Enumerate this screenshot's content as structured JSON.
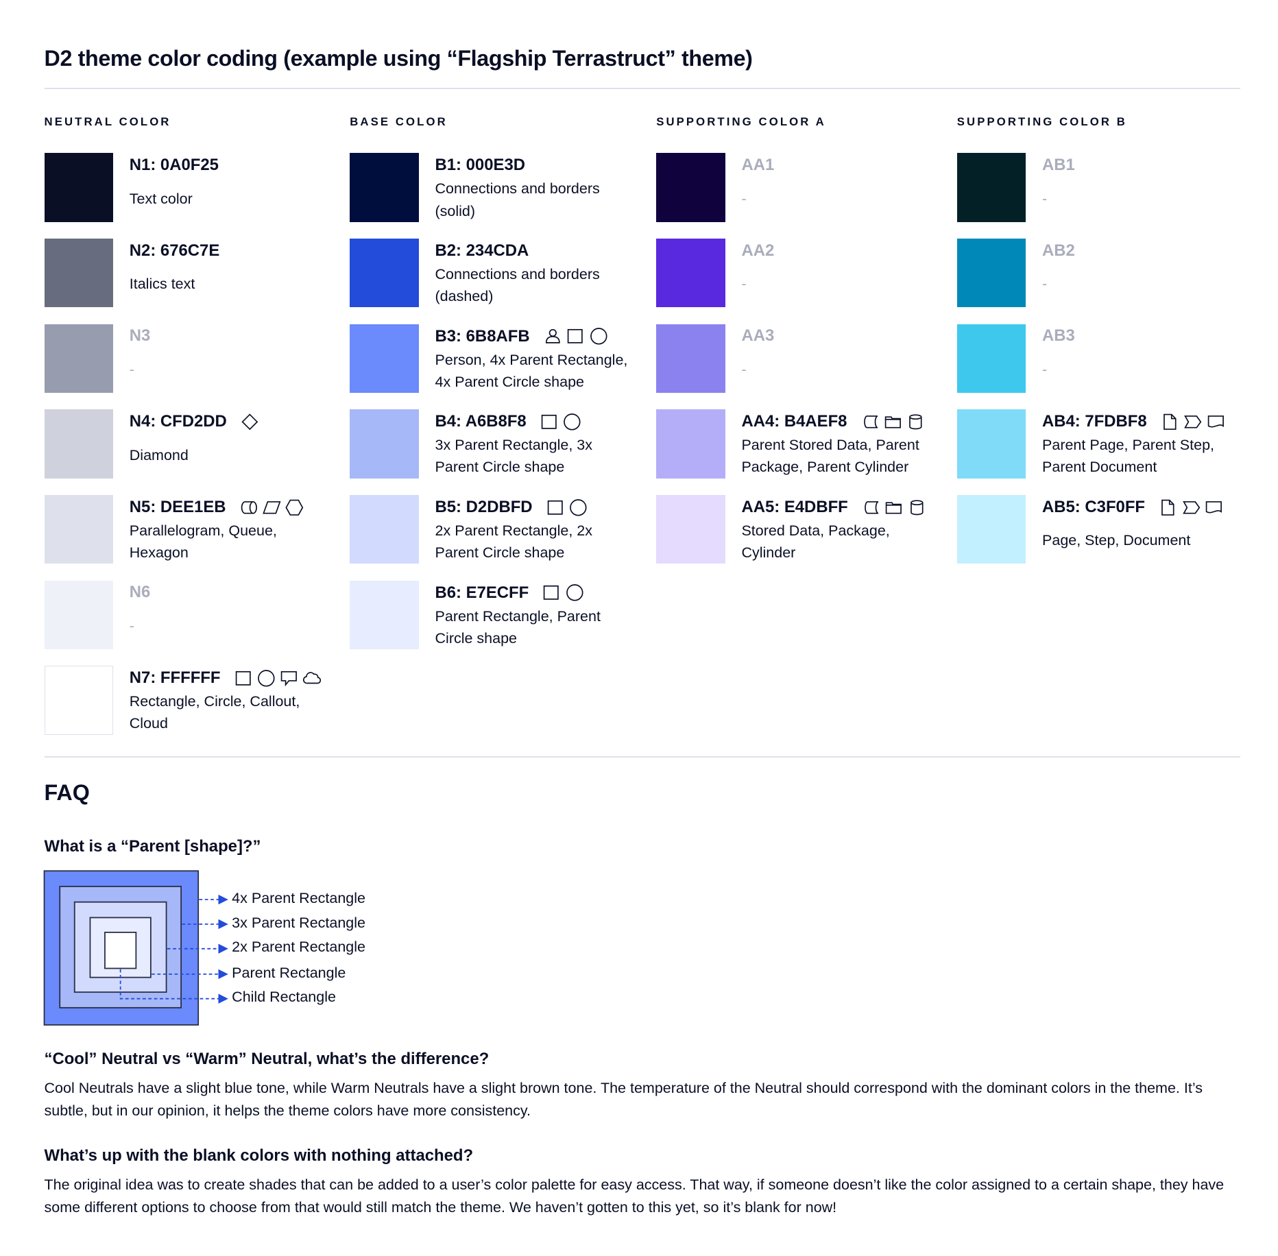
{
  "title": "D2 theme color coding (example using “Flagship Terrastruct” theme)",
  "columns": [
    {
      "heading": "NEUTRAL COLOR",
      "items": [
        {
          "code": "N1: 0A0F25",
          "color": "#0A0F25",
          "desc": "Text color",
          "icons": []
        },
        {
          "code": "N2: 676C7E",
          "color": "#676C7E",
          "desc": "Italics text",
          "icons": []
        },
        {
          "code": "N3",
          "color": "#979CAF",
          "desc": "-",
          "blank": true,
          "icons": []
        },
        {
          "code": "N4: CFD2DD",
          "color": "#CFD2DD",
          "desc": "Diamond",
          "icons": [
            "diamond"
          ]
        },
        {
          "code": "N5: DEE1EB",
          "color": "#DEE1EB",
          "desc": "Parallelogram, Queue, Hexagon",
          "icons": [
            "queue",
            "parallelogram",
            "hexagon"
          ]
        },
        {
          "code": "N6",
          "color": "#EEF1F8",
          "desc": "-",
          "blank": true,
          "icons": []
        },
        {
          "code": "N7: FFFFFF",
          "color": "#FFFFFF",
          "desc": "Rectangle, Circle, Callout, Cloud",
          "icons": [
            "rectangle",
            "circle",
            "callout",
            "cloud"
          ]
        }
      ]
    },
    {
      "heading": "BASE COLOR",
      "items": [
        {
          "code": "B1: 000E3D",
          "color": "#000E3D",
          "desc": "Connections and borders (solid)",
          "icons": []
        },
        {
          "code": "B2: 234CDA",
          "color": "#234CDA",
          "desc": "Connections and borders (dashed)",
          "icons": []
        },
        {
          "code": "B3: 6B8AFB",
          "color": "#6B8AFB",
          "desc": "Person, 4x Parent Rectangle, 4x Parent Circle shape",
          "icons": [
            "person",
            "rectangle",
            "circle"
          ]
        },
        {
          "code": "B4: A6B8F8",
          "color": "#A6B8F8",
          "desc": "3x Parent Rectangle, 3x Parent Circle shape",
          "icons": [
            "rectangle",
            "circle"
          ]
        },
        {
          "code": "B5: D2DBFD",
          "color": "#D2DBFD",
          "desc": "2x Parent Rectangle, 2x Parent Circle shape",
          "icons": [
            "rectangle",
            "circle"
          ]
        },
        {
          "code": "B6: E7ECFF",
          "color": "#E7ECFF",
          "desc": "Parent Rectangle, Parent Circle shape",
          "icons": [
            "rectangle",
            "circle"
          ]
        }
      ]
    },
    {
      "heading": "SUPPORTING COLOR A",
      "items": [
        {
          "code": "AA1",
          "color": "#10023D",
          "desc": "-",
          "blank": true,
          "icons": []
        },
        {
          "code": "AA2",
          "color": "#5829DF",
          "desc": "-",
          "blank": true,
          "icons": []
        },
        {
          "code": "AA3",
          "color": "#8B82F0",
          "desc": "-",
          "blank": true,
          "icons": []
        },
        {
          "code": "AA4: B4AEF8",
          "color": "#B4AEF8",
          "desc": "Parent Stored Data, Parent Package,  Parent Cylinder",
          "icons": [
            "stored-data",
            "package",
            "cylinder"
          ]
        },
        {
          "code": "AA5: E4DBFF",
          "color": "#E4DBFF",
          "desc": "Stored Data, Package, Cylinder",
          "icons": [
            "stored-data",
            "package",
            "cylinder"
          ]
        }
      ]
    },
    {
      "heading": "SUPPORTING COLOR B",
      "items": [
        {
          "code": "AB1",
          "color": "#022026",
          "desc": "-",
          "blank": true,
          "icons": []
        },
        {
          "code": "AB2",
          "color": "#0089B8",
          "desc": "-",
          "blank": true,
          "icons": []
        },
        {
          "code": "AB3",
          "color": "#3FC8EE",
          "desc": "-",
          "blank": true,
          "icons": []
        },
        {
          "code": "AB4: 7FDBF8",
          "color": "#7FDBF8",
          "desc": "Parent Page, Parent Step, Parent Document",
          "icons": [
            "page",
            "step",
            "document"
          ]
        },
        {
          "code": "AB5: C3F0FF",
          "color": "#C3F0FF",
          "desc": "Page, Step, Document",
          "icons": [
            "page",
            "step",
            "document"
          ]
        }
      ]
    }
  ],
  "faq": {
    "heading": "FAQ",
    "q1": "What is a “Parent [shape]?”",
    "diagram_labels": [
      "4x Parent Rectangle",
      "3x Parent Rectangle",
      "2x Parent Rectangle",
      "Parent Rectangle",
      "Child Rectangle"
    ],
    "q2": "“Cool” Neutral vs “Warm” Neutral, what’s the difference?",
    "a2": "Cool Neutrals have a slight blue tone, while Warm Neutrals have a slight brown tone. The temperature of the Neutral should correspond with the dominant colors in the theme. It’s subtle, but in our opinion, it helps the theme colors have more consistency.",
    "q3": "What’s up with the blank colors with nothing attached?",
    "a3": "The original idea was to create shades that can be added to a user’s color palette for easy access. That way, if someone doesn’t like the color assigned to a certain shape, they have some different options to choose from that would still match the theme. We haven’t gotten to this yet, so it’s blank for now!"
  },
  "colors": {
    "text": "#0A0F25",
    "divider": "#DEE1EB",
    "blank_text": "#A9ADBB",
    "arrow": "#234CDA",
    "border": "#2A2F45"
  }
}
